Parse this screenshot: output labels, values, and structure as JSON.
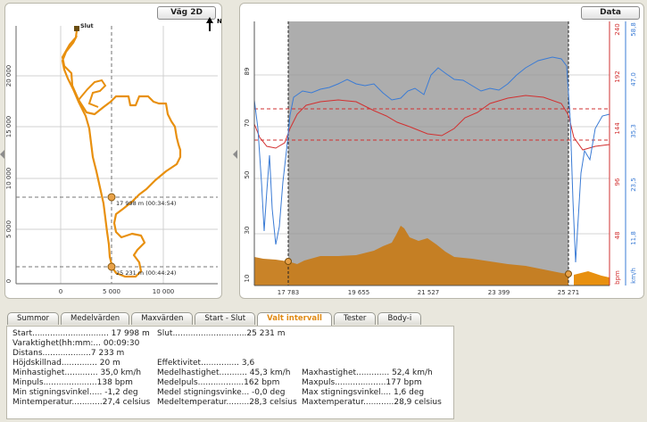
{
  "map_panel": {
    "title": "Väg 2D",
    "north_label": "N",
    "end_label": "Slut",
    "y_ticks": [
      "20 000",
      "15 000",
      "10 000",
      "5 000",
      "0"
    ],
    "x_ticks": [
      "0",
      "5 000",
      "10 000"
    ],
    "marker1_label": "17 998 m (00:34:54)",
    "marker2_label": "25 231 m (00:44:24)",
    "route_color": "#e8900f"
  },
  "data_panel": {
    "title": "Data",
    "left_ticks": [
      "89",
      "70",
      "50",
      "30",
      "10"
    ],
    "x_ticks": [
      "17 783",
      "19 655",
      "21 527",
      "23 399",
      "25 271"
    ],
    "bpm_ticks": [
      "240",
      "192",
      "144",
      "96",
      "48"
    ],
    "bpm_unit": "bpm",
    "kmh_ticks": [
      "58,8",
      "47,0",
      "35,3",
      "23,5",
      "11,8"
    ],
    "kmh_unit": "km/h",
    "colors": {
      "speed": "#3a7bd5",
      "heart_rate": "#d23030",
      "elevation": "#c67c1c",
      "selection": "#a8a8a8"
    }
  },
  "tabs": [
    {
      "label": "Summor",
      "active": false
    },
    {
      "label": "Medelvärden",
      "active": false
    },
    {
      "label": "Maxvärden",
      "active": false
    },
    {
      "label": "Start - Slut",
      "active": false
    },
    {
      "label": "Valt intervall",
      "active": true
    },
    {
      "label": "Tester",
      "active": false
    },
    {
      "label": "Body-i",
      "active": false
    }
  ],
  "stats": {
    "start": "Start.............................. 17 998 m",
    "slut": "Slut.............................25 231 m",
    "varaktighet": "Varaktighet(hh:mm:... 00:09:30",
    "distans": "Distans...................7 233 m",
    "hojdskillnad": "Höjdskillnad.............. 20 m",
    "effektivitet": "Effektivitet............... 3,6",
    "minhast": "Minhastighet............. 35,0 km/h",
    "medelhast": "Medelhastighet........... 45,3 km/h",
    "maxhast": "Maxhastighet............. 52,4 km/h",
    "minpuls": "Minpuls.....................138 bpm",
    "medelpuls": "Medelpuls..................162 bpm",
    "maxpuls": "Maxpuls....................177 bpm",
    "minstig": "Min stigningsvinkel..... -1,2 deg",
    "medelstig": "Medel stigningsvinke... -0,0 deg",
    "maxstig": "Max stigningsvinkel.... 1,6 deg",
    "mintemp": "Mintemperatur............27,4 celsius",
    "medeltemp": "Medeltemperatur.........28,3 celsius",
    "maxtemp": "Maxtemperatur............28,9 celsius"
  }
}
